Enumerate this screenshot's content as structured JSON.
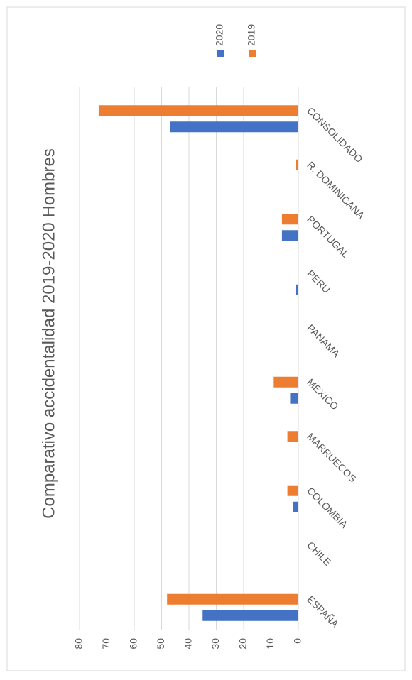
{
  "chart_data": {
    "type": "bar",
    "title": "Comparativo accidentalidad 2019-2020 Hombres",
    "categories": [
      "ESPAÑA",
      "CHILE",
      "COLOMBIA",
      "MARRUECOS",
      "MEXICO",
      "PANAMA",
      "PERU",
      "PORTUGAL",
      "R. DOMINICANA",
      "CONSOLIDADO"
    ],
    "series": [
      {
        "name": "2020",
        "color": "#4472c4",
        "values": [
          35,
          0,
          2,
          0,
          3,
          0,
          1,
          6,
          0,
          47
        ]
      },
      {
        "name": "2019",
        "color": "#ed7d31",
        "values": [
          48,
          0,
          4,
          4,
          9,
          0,
          0,
          6,
          1,
          73
        ]
      }
    ],
    "ylim": [
      0,
      80
    ],
    "yticks": [
      0,
      10,
      20,
      30,
      40,
      50,
      60,
      70,
      80
    ],
    "grid": true,
    "legend": "right"
  }
}
